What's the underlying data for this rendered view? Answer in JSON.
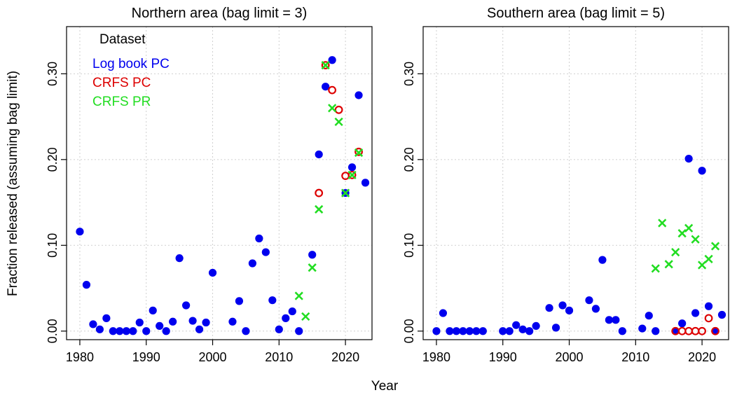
{
  "chart_data": [
    {
      "type": "scatter",
      "title": "Northern area (bag limit = 3)",
      "xlabel": "Year",
      "ylabel": "Fraction released (assuming bag limit)",
      "xlim": [
        1978,
        2024
      ],
      "ylim": [
        -0.01,
        0.355
      ],
      "xticks": [
        1980,
        1990,
        2000,
        2010,
        2020
      ],
      "yticks": [
        0.0,
        0.1,
        0.2,
        0.3
      ],
      "xtick_labels": [
        "1980",
        "1990",
        "2000",
        "2010",
        "2020"
      ],
      "ytick_labels": [
        "0.00",
        "0.10",
        "0.20",
        "0.30"
      ],
      "grid": true,
      "legend": {
        "title": "Dataset",
        "placement": "top-left",
        "entries": [
          {
            "label": "Log book PC",
            "color": "#0000ee"
          },
          {
            "label": "CRFS PC",
            "color": "#dd0000"
          },
          {
            "label": "CRFS PR",
            "color": "#22dd22"
          }
        ]
      },
      "series": [
        {
          "name": "Log book PC",
          "marker": "filled-circle",
          "color": "#0000ee",
          "x": [
            1980,
            1981,
            1982,
            1983,
            1984,
            1985,
            1986,
            1987,
            1988,
            1989,
            1990,
            1991,
            1992,
            1993,
            1994,
            1995,
            1996,
            1997,
            1998,
            1999,
            2000,
            2003,
            2004,
            2005,
            2006,
            2007,
            2008,
            2009,
            2010,
            2011,
            2012,
            2013,
            2015,
            2016,
            2017,
            2018,
            2020,
            2021,
            2022,
            2023
          ],
          "y": [
            0.116,
            0.054,
            0.008,
            0.002,
            0.015,
            0.0,
            0.0,
            0.0,
            0.0,
            0.01,
            0.0,
            0.024,
            0.006,
            0.0,
            0.011,
            0.085,
            0.03,
            0.012,
            0.002,
            0.01,
            0.068,
            0.011,
            0.035,
            0.0,
            0.079,
            0.108,
            0.092,
            0.036,
            0.002,
            0.015,
            0.023,
            0.0,
            0.089,
            0.206,
            0.285,
            0.316,
            0.161,
            0.191,
            0.275,
            0.173
          ]
        },
        {
          "name": "CRFS PC",
          "marker": "open-circle",
          "color": "#dd0000",
          "x": [
            2016,
            2017,
            2018,
            2019,
            2020,
            2021,
            2022
          ],
          "y": [
            0.161,
            0.31,
            0.281,
            0.258,
            0.181,
            0.182,
            0.209
          ]
        },
        {
          "name": "CRFS PR",
          "marker": "x",
          "color": "#22dd22",
          "x": [
            2013,
            2014,
            2015,
            2016,
            2017,
            2018,
            2019,
            2020,
            2021,
            2022
          ],
          "y": [
            0.041,
            0.017,
            0.074,
            0.142,
            0.31,
            0.26,
            0.244,
            0.161,
            0.182,
            0.208
          ]
        }
      ]
    },
    {
      "type": "scatter",
      "title": "Southern area (bag limit = 5)",
      "xlabel": "Year",
      "ylabel": "",
      "xlim": [
        1978,
        2024
      ],
      "ylim": [
        -0.01,
        0.355
      ],
      "xticks": [
        1980,
        1990,
        2000,
        2010,
        2020
      ],
      "yticks": [
        0.0,
        0.1,
        0.2,
        0.3
      ],
      "xtick_labels": [
        "1980",
        "1990",
        "2000",
        "2010",
        "2020"
      ],
      "ytick_labels": [
        "0.00",
        "0.10",
        "0.20",
        "0.30"
      ],
      "grid": true,
      "series": [
        {
          "name": "Log book PC",
          "marker": "filled-circle",
          "color": "#0000ee",
          "x": [
            1980,
            1981,
            1982,
            1983,
            1984,
            1985,
            1986,
            1987,
            1990,
            1991,
            1992,
            1993,
            1994,
            1995,
            1997,
            1998,
            1999,
            2000,
            2003,
            2004,
            2005,
            2006,
            2007,
            2008,
            2011,
            2012,
            2013,
            2016,
            2017,
            2018,
            2019,
            2020,
            2021,
            2022,
            2023
          ],
          "y": [
            0.0,
            0.021,
            0.0,
            0.0,
            0.0,
            0.0,
            0.0,
            0.0,
            0.0,
            0.0,
            0.007,
            0.002,
            0.0,
            0.006,
            0.027,
            0.004,
            0.03,
            0.024,
            0.036,
            0.026,
            0.083,
            0.013,
            0.013,
            0.0,
            0.003,
            0.018,
            0.0,
            0.0,
            0.009,
            0.201,
            0.021,
            0.187,
            0.029,
            0.0,
            0.019
          ]
        },
        {
          "name": "CRFS PC",
          "marker": "open-circle",
          "color": "#dd0000",
          "x": [
            2016,
            2017,
            2018,
            2019,
            2020,
            2021,
            2022
          ],
          "y": [
            0.0,
            0.0,
            0.0,
            0.0,
            0.0,
            0.015,
            0.0
          ]
        },
        {
          "name": "CRFS PR",
          "marker": "x",
          "color": "#22dd22",
          "x": [
            2013,
            2014,
            2015,
            2016,
            2017,
            2018,
            2019,
            2020,
            2021,
            2022
          ],
          "y": [
            0.073,
            0.126,
            0.078,
            0.092,
            0.114,
            0.12,
            0.107,
            0.077,
            0.084,
            0.099
          ]
        }
      ]
    }
  ]
}
